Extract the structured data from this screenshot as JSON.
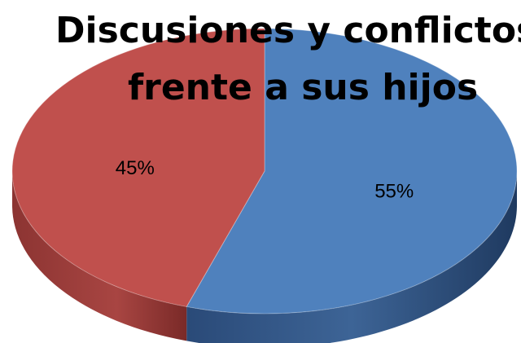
{
  "chart_data": {
    "type": "pie",
    "title": [
      "Discusiones y conflictos",
      "frente a sus hijos"
    ],
    "categories": [
      null,
      null
    ],
    "values": [
      55,
      45
    ],
    "value_labels": [
      "55%",
      "45%"
    ],
    "colors": [
      "#4f81bd",
      "#c0504d"
    ],
    "legend": false
  }
}
